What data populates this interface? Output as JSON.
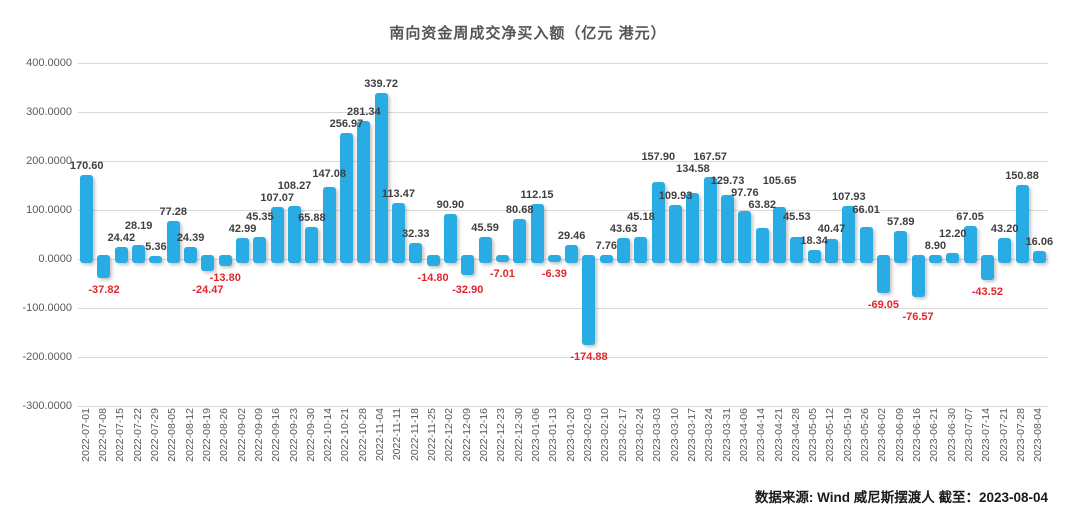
{
  "title": "南向资金周成交净买入额（亿元 港元）",
  "source_note": "数据来源: Wind  威尼斯摆渡人   截至：2023-08-04",
  "colors": {
    "bar": "#29abe3",
    "positive_label": "#3f3f3f",
    "negative_label": "#e0262c",
    "gridline": "#d9d9d9",
    "axis_text": "#595959",
    "title_text": "#555555"
  },
  "y_axis": {
    "ticks": [
      "400.0000",
      "300.0000",
      "200.0000",
      "100.0000",
      "0.0000",
      "-100.0000",
      "-200.0000",
      "-300.0000"
    ],
    "tick_values": [
      400,
      300,
      200,
      100,
      0,
      -100,
      -200,
      -300
    ]
  },
  "chart_data": {
    "type": "bar",
    "title": "南向资金周成交净买入额（亿元 港元）",
    "xlabel": "",
    "ylabel": "",
    "ylim": [
      -300,
      400
    ],
    "grid": true,
    "legend": false,
    "categories": [
      "2022-07-01",
      "2022-07-08",
      "2022-07-15",
      "2022-07-22",
      "2022-07-29",
      "2022-08-05",
      "2022-08-12",
      "2022-08-19",
      "2022-08-26",
      "2022-09-02",
      "2022-09-09",
      "2022-09-16",
      "2022-09-23",
      "2022-09-30",
      "2022-10-14",
      "2022-10-21",
      "2022-10-28",
      "2022-11-04",
      "2022-11-11",
      "2022-11-18",
      "2022-11-25",
      "2022-12-02",
      "2022-12-09",
      "2022-12-16",
      "2022-12-23",
      "2022-12-30",
      "2023-01-06",
      "2023-01-13",
      "2023-01-20",
      "2023-02-03",
      "2023-02-10",
      "2023-02-17",
      "2023-02-24",
      "2023-03-03",
      "2023-03-10",
      "2023-03-17",
      "2023-03-24",
      "2023-03-31",
      "2023-04-06",
      "2023-04-14",
      "2023-04-21",
      "2023-04-28",
      "2023-05-05",
      "2023-05-12",
      "2023-05-19",
      "2023-05-26",
      "2023-06-02",
      "2023-06-09",
      "2023-06-16",
      "2023-06-21",
      "2023-06-30",
      "2023-07-07",
      "2023-07-14",
      "2023-07-21",
      "2023-07-28",
      "2023-08-04"
    ],
    "values": [
      170.6,
      -37.82,
      24.42,
      28.19,
      5.36,
      77.28,
      24.39,
      -24.47,
      -13.8,
      42.99,
      45.35,
      107.07,
      108.27,
      65.88,
      147.08,
      256.97,
      281.34,
      339.72,
      113.47,
      32.33,
      -14.8,
      90.9,
      -32.9,
      45.59,
      -7.01,
      80.68,
      112.15,
      -6.39,
      29.46,
      -174.88,
      7.76,
      43.63,
      45.18,
      157.9,
      109.93,
      134.58,
      167.57,
      129.73,
      97.76,
      63.82,
      105.65,
      45.53,
      18.34,
      40.47,
      107.93,
      66.01,
      -69.05,
      57.89,
      -76.57,
      8.9,
      12.2,
      67.05,
      -43.52,
      43.2,
      150.88,
      16.06
    ]
  }
}
